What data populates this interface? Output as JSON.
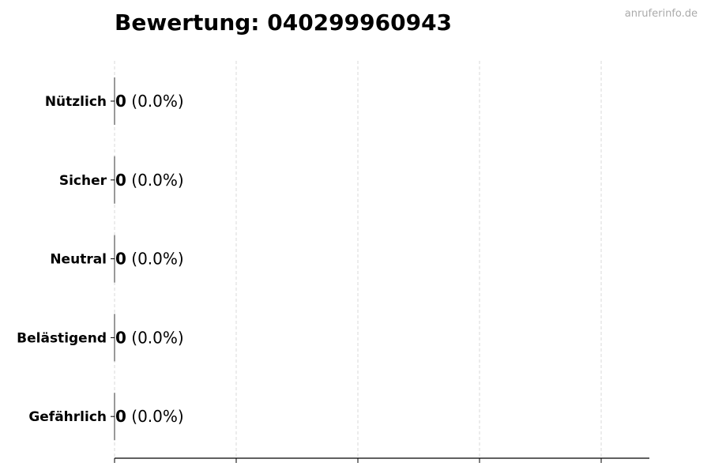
{
  "chart_data": {
    "type": "bar",
    "orientation": "horizontal",
    "title": "Bewertung: 040299960943",
    "watermark": "anruferinfo.de",
    "categories": [
      "Nützlich",
      "Sicher",
      "Neutral",
      "Belästigend",
      "Gefährlich"
    ],
    "values": [
      0,
      0,
      0,
      0,
      0
    ],
    "data_labels": [
      {
        "count": "0",
        "percent": "(0.0%)"
      },
      {
        "count": "0",
        "percent": "(0.0%)"
      },
      {
        "count": "0",
        "percent": "(0.0%)"
      },
      {
        "count": "0",
        "percent": "(0.0%)"
      },
      {
        "count": "0",
        "percent": "(0.0%)"
      }
    ],
    "xlabel": "",
    "ylabel": "",
    "x_tick_labels_shown": false,
    "grid": "vertical dashed",
    "colors": {
      "grid": "#d9d9d9",
      "axis": "#000000",
      "watermark": "#aaaaaa"
    }
  }
}
